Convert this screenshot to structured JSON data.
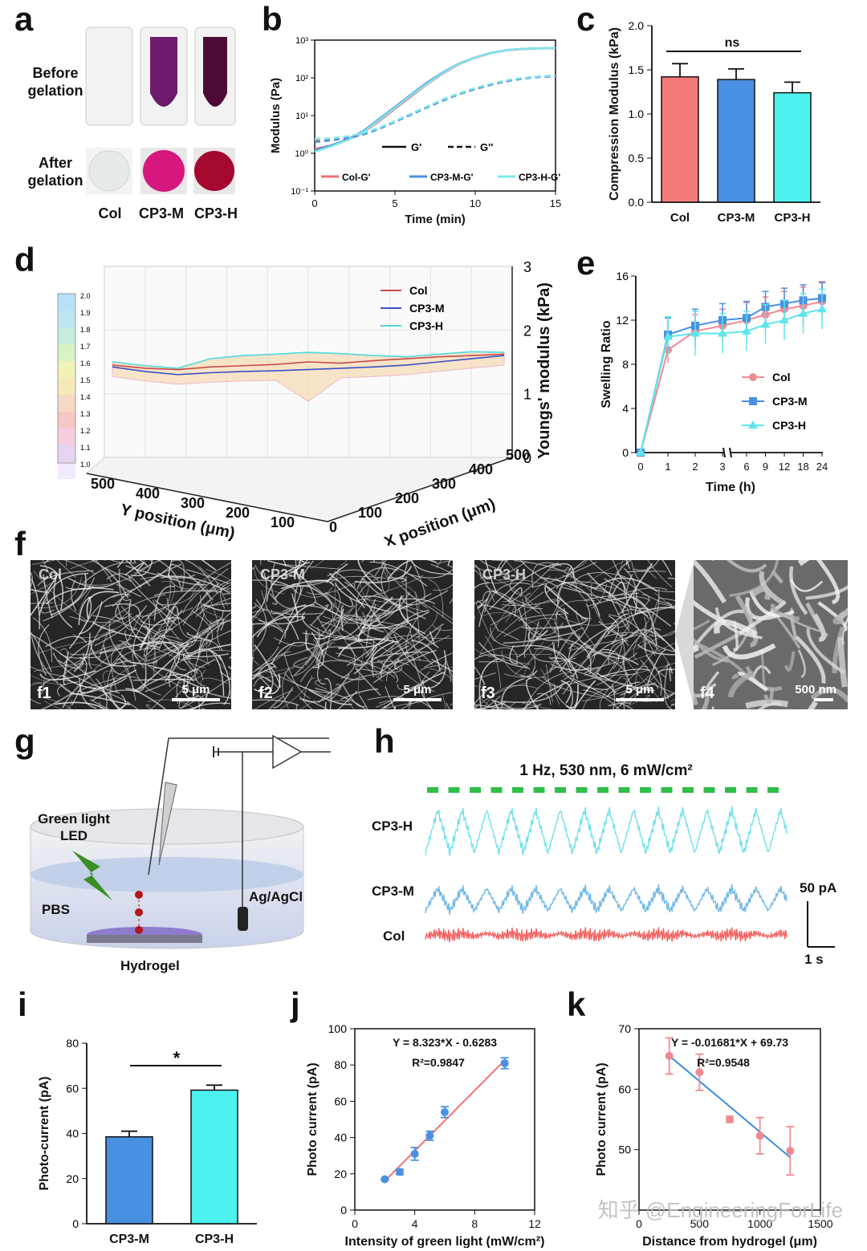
{
  "letters": {
    "a": "a",
    "b": "b",
    "c": "c",
    "d": "d",
    "e": "e",
    "f": "f",
    "g": "g",
    "h": "h",
    "i": "i",
    "j": "j",
    "k": "k"
  },
  "panel_a": {
    "row1_label": "Before gelation",
    "row2_label": "After gelation",
    "labels": [
      "Col",
      "CP3-M",
      "CP3-H"
    ]
  },
  "watermark": "知乎 @EngineeringForLife",
  "panel_f": {
    "images": [
      {
        "name": "Col",
        "sub": "f1",
        "scale": "5 μm"
      },
      {
        "name": "CP3-M",
        "sub": "f2",
        "scale": "5 μm"
      },
      {
        "name": "CP3-H",
        "sub": "f3",
        "scale": "5 μm"
      },
      {
        "name": "",
        "sub": "f4",
        "scale": "500 nm"
      }
    ]
  },
  "panel_g": {
    "labels": {
      "led": "Green light LED",
      "pbs": "PBS",
      "electrode": "Ag/AgCl",
      "hydrogel": "Hydrogel"
    }
  },
  "panel_h": {
    "stim": "1 Hz, 530 nm, 6 mW/cm²",
    "traces": [
      "CP3-H",
      "CP3-M",
      "Col"
    ],
    "scale_y": "50 pA",
    "scale_x": "1 s"
  },
  "chart_data": [
    {
      "id": "b",
      "type": "line",
      "xlabel": "Time (min)",
      "ylabel": "Modulus (Pa)",
      "xlim": [
        0,
        15
      ],
      "ylim": [
        0.1,
        1000
      ],
      "yscale": "log",
      "xticks": [
        "0",
        "5",
        "10",
        "15"
      ],
      "yticks": [
        "10⁻¹",
        "10⁰",
        "10¹",
        "10²",
        "10³"
      ],
      "legend_style": [
        "G'",
        "G''"
      ],
      "series": [
        {
          "name": "Col-G'",
          "color": "#f07272",
          "x": [
            0,
            1,
            2,
            3,
            4,
            5,
            6,
            7,
            8,
            9,
            10,
            11,
            12,
            13,
            14,
            15
          ],
          "y": [
            1.3,
            1.6,
            2.2,
            3.5,
            7,
            15,
            32,
            68,
            130,
            230,
            340,
            450,
            540,
            580,
            600,
            610
          ]
        },
        {
          "name": "CP3-M-G'",
          "color": "#4a90e2",
          "x": [
            0,
            1,
            2,
            3,
            4,
            5,
            6,
            7,
            8,
            9,
            10,
            11,
            12,
            13,
            14,
            15
          ],
          "y": [
            1.2,
            1.6,
            2.3,
            3.8,
            8,
            17,
            36,
            75,
            140,
            240,
            350,
            460,
            550,
            590,
            610,
            620
          ]
        },
        {
          "name": "CP3-H-G'",
          "color": "#7fe8ec",
          "x": [
            0,
            1,
            2,
            3,
            4,
            5,
            6,
            7,
            8,
            9,
            10,
            11,
            12,
            13,
            14,
            15
          ],
          "y": [
            1.1,
            1.5,
            2.2,
            3.6,
            7.5,
            16,
            34,
            70,
            135,
            235,
            345,
            455,
            545,
            585,
            605,
            615
          ]
        },
        {
          "name": "Col-G''",
          "color": "#f07272",
          "dashed": true,
          "x": [
            0,
            1,
            2,
            3,
            4,
            5,
            6,
            7,
            8,
            9,
            10,
            11,
            12,
            13,
            14,
            15
          ],
          "y": [
            2.2,
            2.3,
            2.6,
            3.2,
            4.5,
            7,
            11,
            17,
            26,
            38,
            52,
            68,
            85,
            98,
            108,
            112
          ]
        },
        {
          "name": "CP3-M-G''",
          "color": "#4a90e2",
          "dashed": true,
          "x": [
            0,
            1,
            2,
            3,
            4,
            5,
            6,
            7,
            8,
            9,
            10,
            11,
            12,
            13,
            14,
            15
          ],
          "y": [
            2.0,
            2.2,
            2.5,
            3.1,
            4.4,
            6.8,
            10.5,
            16.5,
            25,
            37,
            50,
            66,
            82,
            95,
            105,
            110
          ]
        },
        {
          "name": "CP3-H-G''",
          "color": "#7fe8ec",
          "dashed": true,
          "x": [
            0,
            1,
            2,
            3,
            4,
            5,
            6,
            7,
            8,
            9,
            10,
            11,
            12,
            13,
            14,
            15
          ],
          "y": [
            2.4,
            2.5,
            2.8,
            3.4,
            4.7,
            7.2,
            11.2,
            17.5,
            27,
            39,
            54,
            70,
            87,
            100,
            110,
            115
          ]
        }
      ]
    },
    {
      "id": "c",
      "type": "bar",
      "ylabel": "Compression Modulus (kPa)",
      "ylim": [
        0,
        2.0
      ],
      "yticks": [
        "0.0",
        "0.5",
        "1.0",
        "1.5",
        "2.0"
      ],
      "categories": [
        "Col",
        "CP3-M",
        "CP3-H"
      ],
      "values": [
        1.42,
        1.39,
        1.24
      ],
      "errors": [
        0.15,
        0.12,
        0.12
      ],
      "colors": [
        "#f47a7a",
        "#4a90e2",
        "#4df2ee"
      ],
      "annotation": "ns"
    },
    {
      "id": "d",
      "type": "surface",
      "zlabel": "Youngs' modulus (kPa)",
      "xlabel": "X position (μm)",
      "ylabel": "Y position (μm)",
      "zticks": [
        "0",
        "1",
        "2",
        "3"
      ],
      "xticks": [
        "0",
        "100",
        "200",
        "300",
        "400",
        "500"
      ],
      "yticks": [
        "500",
        "400",
        "300",
        "200",
        "100"
      ],
      "colorbar": [
        "2.0",
        "1.9",
        "1.8",
        "1.7",
        "1.6",
        "1.5",
        "1.4",
        "1.3",
        "1.2",
        "1.1",
        "1.0"
      ],
      "legend": [
        {
          "name": "Col",
          "color": "#c94a4a"
        },
        {
          "name": "CP3-M",
          "color": "#3a4fc4"
        },
        {
          "name": "CP3-H",
          "color": "#4ed8e0"
        }
      ],
      "series": [
        {
          "name": "Col",
          "y": [
            1.45,
            1.4,
            1.38,
            1.42,
            1.44,
            1.46,
            1.5,
            1.48,
            1.52,
            1.55,
            1.58,
            1.6,
            1.62
          ]
        },
        {
          "name": "CP3-M",
          "y": [
            1.42,
            1.35,
            1.3,
            1.33,
            1.35,
            1.36,
            1.38,
            1.4,
            1.42,
            1.45,
            1.5,
            1.55,
            1.6
          ]
        },
        {
          "name": "CP3-H",
          "y": [
            1.5,
            1.44,
            1.4,
            1.55,
            1.6,
            1.62,
            1.65,
            1.63,
            1.6,
            1.58,
            1.62,
            1.66,
            1.65
          ]
        }
      ]
    },
    {
      "id": "e",
      "type": "line",
      "xlabel": "Time (h)",
      "ylabel": "Swelling Ratio",
      "ylim": [
        0,
        16
      ],
      "yticks": [
        "0",
        "4",
        "8",
        "12",
        "16"
      ],
      "xticks": [
        "0",
        "1",
        "2",
        "3",
        "6",
        "9",
        "12",
        "18",
        "24"
      ],
      "x": [
        "0",
        "1",
        "2",
        "3",
        "6",
        "9",
        "12",
        "18",
        "24"
      ],
      "series": [
        {
          "name": "Col",
          "color": "#f08a92",
          "marker": "circle",
          "values": [
            0,
            9.3,
            11.0,
            11.5,
            12.0,
            12.5,
            13.0,
            13.3,
            13.7
          ],
          "errors": [
            0,
            1.2,
            1.5,
            1.5,
            1.6,
            1.6,
            1.6,
            1.7,
            1.8
          ]
        },
        {
          "name": "CP3-M",
          "color": "#4a90e2",
          "marker": "square",
          "values": [
            0,
            10.7,
            11.5,
            12.0,
            12.2,
            13.2,
            13.5,
            13.8,
            14.0
          ],
          "errors": [
            0,
            1.5,
            1.5,
            1.5,
            1.5,
            1.4,
            1.4,
            1.4,
            1.4
          ]
        },
        {
          "name": "CP3-H",
          "color": "#5ee6ea",
          "marker": "triangle",
          "values": [
            0,
            10.5,
            10.8,
            10.8,
            11.0,
            11.6,
            12.0,
            12.6,
            13.0
          ],
          "errors": [
            0,
            1.8,
            2.0,
            1.8,
            1.8,
            1.8,
            1.8,
            1.8,
            1.8
          ]
        }
      ]
    },
    {
      "id": "i",
      "type": "bar",
      "ylabel": "Photo-current (pA)",
      "ylim": [
        0,
        80
      ],
      "yticks": [
        "0",
        "20",
        "40",
        "60",
        "80"
      ],
      "categories": [
        "CP3-M",
        "CP3-H"
      ],
      "values": [
        38.5,
        59.2
      ],
      "errors": [
        2.5,
        2.2
      ],
      "colors": [
        "#4a90e2",
        "#4df2ee"
      ],
      "annotation": "*"
    },
    {
      "id": "j",
      "type": "scatter",
      "xlabel": "Intensity of green light (mW/cm²)",
      "ylabel": "Photo current (pA)",
      "xlim": [
        0,
        12
      ],
      "ylim": [
        0,
        100
      ],
      "xticks": [
        "0",
        "4",
        "8",
        "12"
      ],
      "yticks": [
        "0",
        "20",
        "40",
        "60",
        "80",
        "100"
      ],
      "equation": "Y = 8.323*X - 0.6283",
      "r2": "R²=0.9847",
      "points": [
        {
          "x": 2,
          "y": 17,
          "e": 0.5
        },
        {
          "x": 3,
          "y": 21,
          "e": 1.5
        },
        {
          "x": 4,
          "y": 31,
          "e": 3.5
        },
        {
          "x": 5,
          "y": 41,
          "e": 2.5
        },
        {
          "x": 6,
          "y": 54,
          "e": 3
        },
        {
          "x": 10,
          "y": 81,
          "e": 3
        }
      ],
      "fit": {
        "x0": 2,
        "x1": 10,
        "slope": 8.323,
        "intercept": -0.6283
      },
      "point_color": "#4a90e2",
      "line_color": "#f07272"
    },
    {
      "id": "k",
      "type": "scatter",
      "xlabel": "Distance from hydrogel (μm)",
      "ylabel": "Photo current (pA)",
      "xlim": [
        0,
        1500
      ],
      "ylim": [
        40,
        70
      ],
      "xticks": [
        "0",
        "500",
        "1000",
        "1500"
      ],
      "yticks": [
        "50",
        "60",
        "70"
      ],
      "equation": "Y = -0.01681*X + 69.73",
      "r2": "R²=0.9548",
      "points": [
        {
          "x": 250,
          "y": 65.5,
          "e": 3
        },
        {
          "x": 500,
          "y": 62.8,
          "e": 3
        },
        {
          "x": 750,
          "y": 55,
          "e": 0.5
        },
        {
          "x": 1000,
          "y": 52.3,
          "e": 3
        },
        {
          "x": 1250,
          "y": 49.8,
          "e": 4
        }
      ],
      "fit": {
        "x0": 250,
        "x1": 1250,
        "slope": -0.01681,
        "intercept": 69.73
      },
      "point_color": "#f08a92",
      "line_color": "#3a8fd8"
    }
  ]
}
